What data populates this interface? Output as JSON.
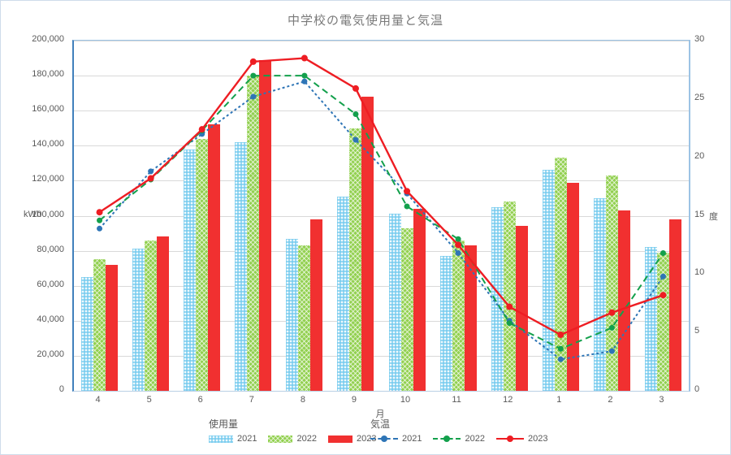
{
  "chart_data": {
    "type": "combo-bar-line",
    "title": "中学校の電気使用量と気温",
    "categories": [
      "4",
      "5",
      "6",
      "7",
      "8",
      "9",
      "10",
      "11",
      "12",
      "1",
      "2",
      "3"
    ],
    "x_axis": {
      "label": "月"
    },
    "left_axis": {
      "unit": "kWh",
      "min": 0,
      "max": 200000,
      "step": 20000,
      "tick_labels": [
        "0",
        "20,000",
        "40,000",
        "60,000",
        "80,000",
        "100,000",
        "120,000",
        "140,000",
        "160,000",
        "180,000",
        "200,000"
      ]
    },
    "right_axis": {
      "unit": "度",
      "min": 0,
      "max": 30,
      "step": 5,
      "tick_labels": [
        "0",
        "5",
        "10",
        "15",
        "20",
        "25",
        "30"
      ]
    },
    "grid": "horizontal",
    "legend_position": "bottom",
    "bar_series": [
      {
        "name": "2021",
        "pattern": "dots",
        "color": "#7CCDEF",
        "values": [
          65000,
          81000,
          138000,
          142000,
          87000,
          111000,
          101000,
          77000,
          105000,
          126000,
          110000,
          82000
        ]
      },
      {
        "name": "2022",
        "pattern": "cross",
        "color": "#92D050",
        "values": [
          75000,
          86000,
          144000,
          180000,
          83000,
          150000,
          93000,
          86000,
          108000,
          133000,
          123000,
          79000
        ]
      },
      {
        "name": "2023",
        "pattern": "solid",
        "color": "#F13030",
        "values": [
          72000,
          88000,
          152000,
          189000,
          98000,
          168000,
          104000,
          83000,
          94000,
          119000,
          103000,
          98000
        ]
      }
    ],
    "line_series": [
      {
        "name": "2021",
        "color": "#2E75B6",
        "dash": "3 3",
        "values": [
          13.9,
          18.8,
          22.0,
          25.2,
          26.5,
          21.5,
          16.9,
          11.8,
          6.0,
          2.7,
          3.4,
          9.8
        ]
      },
      {
        "name": "2022",
        "color": "#13A04C",
        "dash": "8 5",
        "values": [
          14.6,
          18.1,
          22.3,
          27.0,
          27.0,
          23.7,
          15.8,
          13.0,
          5.8,
          3.6,
          5.4,
          11.8
        ]
      },
      {
        "name": "2023",
        "color": "#EE1D23",
        "dash": "none",
        "values": [
          15.3,
          18.2,
          22.4,
          28.2,
          28.5,
          25.9,
          17.1,
          12.5,
          7.2,
          4.8,
          6.7,
          8.2
        ]
      }
    ],
    "legend": {
      "usage_title": "使用量",
      "temperature_title": "気温",
      "usage_items": [
        "2021",
        "2022",
        "2023"
      ],
      "temperature_items": [
        "2021",
        "2022",
        "2023"
      ]
    }
  }
}
